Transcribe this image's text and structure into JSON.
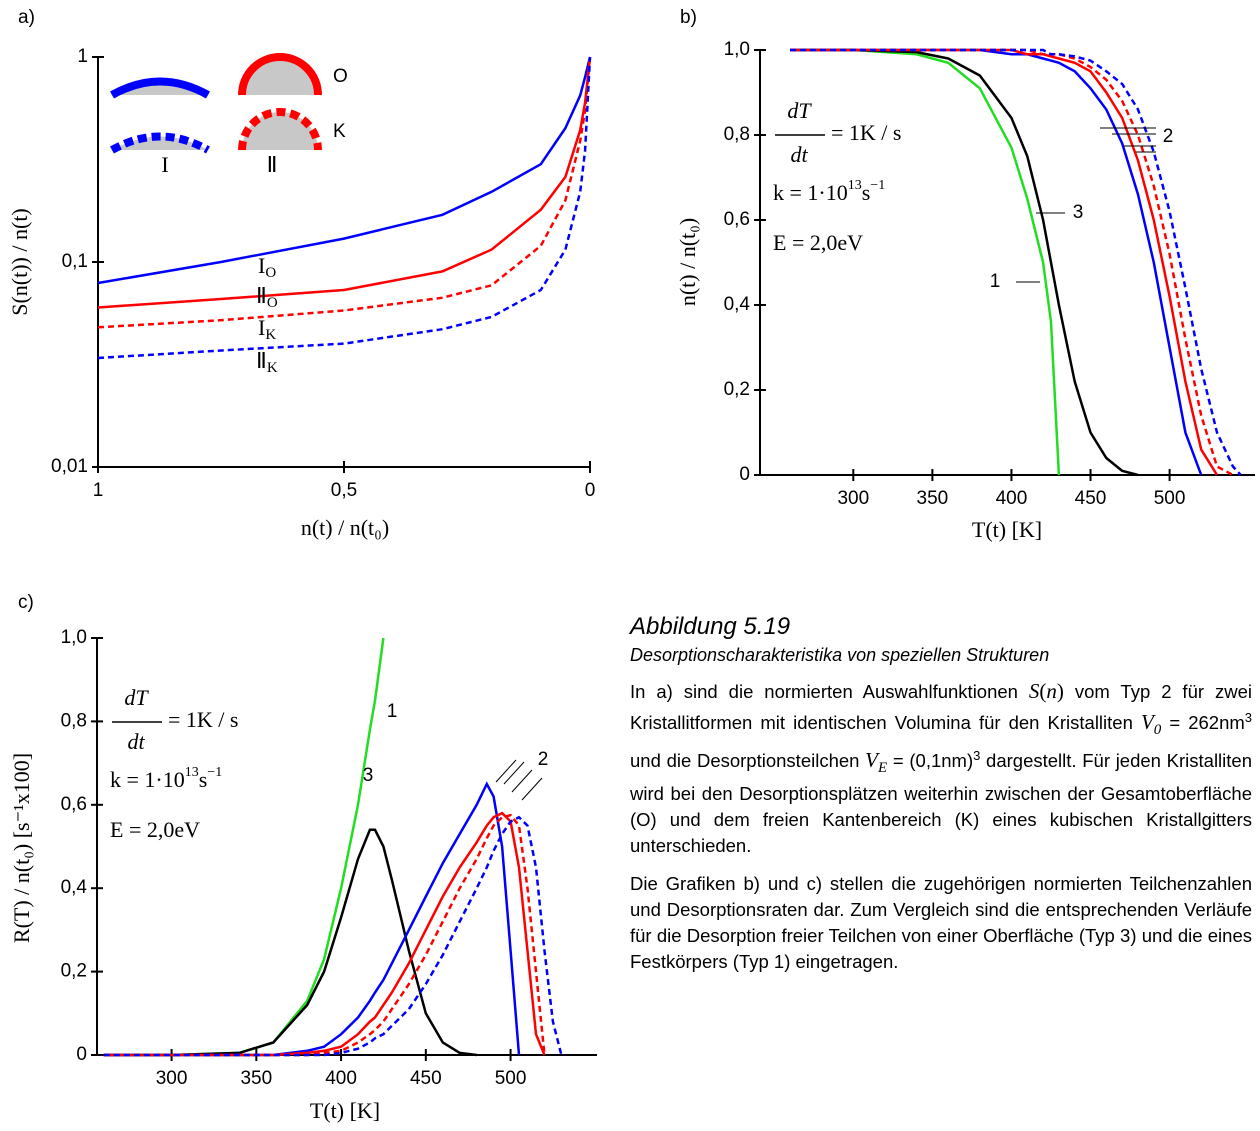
{
  "chart_data": [
    {
      "type": "line",
      "label": "a)",
      "y_label": "S(n(t)) / n(t)",
      "x_label": "n(t) / n(t₀)",
      "log": true,
      "xlim": [
        1,
        0
      ],
      "ylim": [
        0.01,
        1
      ],
      "xticks": [
        1,
        {
          "value": 0.5,
          "label": "0,5"
        },
        0
      ],
      "yticks": [
        {
          "value": 0.01,
          "label": "0,01"
        },
        {
          "value": 0.1,
          "label": "0,1"
        },
        1
      ],
      "shape_labels": [
        "O",
        "K",
        "I",
        "Ⅱ"
      ],
      "x": [
        1,
        0.75,
        0.5,
        0.3,
        0.2,
        0.1,
        0.05,
        0.02,
        0.01,
        0
      ],
      "series": [
        {
          "name": "I",
          "subscript": "O",
          "color": "#0000ff",
          "dashed": false,
          "values": [
            0.079,
            0.1,
            0.13,
            0.17,
            0.22,
            0.3,
            0.45,
            0.65,
            0.8,
            1
          ]
        },
        {
          "name": "Ⅱ",
          "subscript": "O",
          "color": "#ff0000",
          "dashed": false,
          "values": [
            0.06,
            0.066,
            0.073,
            0.09,
            0.115,
            0.18,
            0.26,
            0.44,
            0.6,
            1
          ]
        },
        {
          "name": "I",
          "subscript": "K",
          "color": "#ff0000",
          "dashed": true,
          "values": [
            0.048,
            0.052,
            0.058,
            0.067,
            0.077,
            0.12,
            0.2,
            0.39,
            0.55,
            1
          ]
        },
        {
          "name": "Ⅱ",
          "subscript": "K",
          "color": "#0000ff",
          "dashed": true,
          "values": [
            0.034,
            0.037,
            0.04,
            0.047,
            0.054,
            0.073,
            0.115,
            0.22,
            0.35,
            1
          ]
        }
      ]
    },
    {
      "type": "line",
      "label": "b)",
      "y_label": "n(t) / n(t₀)",
      "x_label": "T(t) [K]",
      "log": false,
      "xlim": [
        241,
        554
      ],
      "ylim": [
        0,
        1.0
      ],
      "xticks": [
        300,
        350,
        400,
        450,
        500
      ],
      "yticks": [
        0,
        {
          "value": 0.2,
          "label": "0,2"
        },
        {
          "value": 0.4,
          "label": "0,4"
        },
        {
          "value": 0.6,
          "label": "0,6"
        },
        {
          "value": 0.8,
          "label": "0,8"
        },
        {
          "value": 1.0,
          "label": "1,0"
        }
      ],
      "curve_labels": [
        "1",
        "2",
        "3"
      ],
      "formula": [
        "dT",
        "dt",
        "= 1K / s",
        "k = 1·10",
        "13",
        "s",
        "−1",
        "E = 2,0eV"
      ],
      "x": [
        260,
        300,
        340,
        360,
        380,
        400,
        410,
        420,
        425,
        430,
        440,
        450,
        460,
        470,
        480,
        490,
        500,
        510,
        520,
        530,
        540,
        545
      ],
      "series": [
        {
          "color": "#22dd22",
          "dashed": false,
          "values": [
            1,
            1,
            0.99,
            0.97,
            0.91,
            0.77,
            0.65,
            0.5,
            0.36,
            0,
            null,
            null,
            null,
            null,
            null,
            null,
            null,
            null,
            null,
            null,
            null,
            null
          ]
        },
        {
          "color": "#000000",
          "dashed": false,
          "values": [
            1,
            1,
            0.995,
            0.98,
            0.94,
            0.84,
            0.75,
            0.6,
            0.5,
            0.4,
            0.22,
            0.1,
            0.04,
            0.01,
            0,
            null,
            null,
            null,
            null,
            null,
            null,
            null
          ]
        },
        {
          "color": "#0000ff",
          "dashed": false,
          "values": [
            1,
            1,
            1,
            1,
            1,
            0.99,
            0.99,
            0.98,
            0.975,
            0.97,
            0.95,
            0.91,
            0.86,
            0.78,
            0.66,
            0.5,
            0.3,
            0.1,
            0,
            null,
            null,
            null
          ]
        },
        {
          "color": "#ff0000",
          "dashed": false,
          "values": [
            1,
            1,
            1,
            1,
            1,
            1,
            0.99,
            0.99,
            0.985,
            0.98,
            0.97,
            0.95,
            0.9,
            0.84,
            0.74,
            0.6,
            0.42,
            0.22,
            0.06,
            0,
            null,
            null
          ]
        },
        {
          "color": "#ff0000",
          "dashed": true,
          "values": [
            1,
            1,
            1,
            1,
            1,
            1,
            1,
            0.99,
            0.99,
            0.99,
            0.98,
            0.96,
            0.93,
            0.88,
            0.8,
            0.68,
            0.52,
            0.32,
            0.14,
            0.02,
            0,
            null
          ]
        },
        {
          "color": "#0000ff",
          "dashed": true,
          "values": [
            1,
            1,
            1,
            1,
            1,
            1,
            1,
            1,
            0.99,
            0.99,
            0.985,
            0.975,
            0.95,
            0.92,
            0.86,
            0.76,
            0.62,
            0.44,
            0.25,
            0.1,
            0.02,
            0
          ]
        }
      ]
    },
    {
      "type": "line",
      "label": "c)",
      "y_label": "R(T) / n(t₀) [s⁻¹x100]",
      "x_label": "T(t) [K]",
      "log": false,
      "xlim": [
        256,
        551
      ],
      "ylim": [
        0,
        1.0
      ],
      "xticks": [
        300,
        350,
        400,
        450,
        500
      ],
      "yticks": [
        0,
        {
          "value": 0.2,
          "label": "0,2"
        },
        {
          "value": 0.4,
          "label": "0,4"
        },
        {
          "value": 0.6,
          "label": "0,6"
        },
        {
          "value": 0.8,
          "label": "0,8"
        },
        {
          "value": 1.0,
          "label": "1,0"
        }
      ],
      "curve_labels": [
        "1",
        "2",
        "3"
      ],
      "formula": [
        "dT",
        "dt",
        "= 1K / s",
        "k = 1·10",
        "13",
        "s",
        "−1",
        "E = 2,0eV"
      ],
      "x": [
        260,
        300,
        340,
        360,
        380,
        390,
        400,
        410,
        417,
        420,
        425,
        430,
        440,
        450,
        460,
        470,
        480,
        486,
        490,
        495,
        500,
        505,
        510,
        515,
        520,
        525,
        530
      ],
      "series": [
        {
          "color": "#22dd22",
          "dashed": false,
          "values": [
            0,
            0,
            0.005,
            0.03,
            0.13,
            0.23,
            0.4,
            0.6,
            0.78,
            0.85,
            1.0,
            null,
            null,
            null,
            null,
            null,
            null,
            null,
            null,
            null,
            null,
            null,
            null,
            null,
            null,
            null,
            null
          ]
        },
        {
          "color": "#000000",
          "dashed": false,
          "values": [
            0,
            0,
            0.005,
            0.03,
            0.12,
            0.2,
            0.33,
            0.47,
            0.54,
            0.54,
            0.5,
            0.42,
            0.25,
            0.1,
            0.03,
            0.005,
            0,
            null,
            null,
            null,
            null,
            null,
            null,
            null,
            null,
            null,
            null
          ]
        },
        {
          "color": "#0000ff",
          "dashed": false,
          "values": [
            0,
            0,
            0,
            0,
            0.01,
            0.02,
            0.05,
            0.09,
            0.13,
            0.15,
            0.18,
            0.22,
            0.3,
            0.38,
            0.46,
            0.53,
            0.6,
            0.65,
            0.62,
            0.5,
            0.25,
            0,
            null,
            null,
            null,
            null,
            null
          ]
        },
        {
          "color": "#ff0000",
          "dashed": false,
          "values": [
            0,
            0,
            0,
            0,
            0.005,
            0.01,
            0.02,
            0.05,
            0.08,
            0.09,
            0.12,
            0.15,
            0.22,
            0.3,
            0.38,
            0.45,
            0.51,
            0.55,
            0.57,
            0.58,
            0.56,
            0.45,
            0.25,
            0.05,
            0,
            null,
            null
          ]
        },
        {
          "color": "#ff0000",
          "dashed": true,
          "values": [
            0,
            0,
            0,
            0,
            0,
            0.005,
            0.01,
            0.03,
            0.05,
            0.06,
            0.08,
            0.11,
            0.17,
            0.24,
            0.32,
            0.4,
            0.47,
            0.52,
            0.55,
            0.57,
            0.575,
            0.55,
            0.4,
            0.2,
            0,
            null,
            null
          ]
        },
        {
          "color": "#0000ff",
          "dashed": true,
          "values": [
            0,
            0,
            0,
            0,
            0,
            0,
            0.005,
            0.015,
            0.03,
            0.04,
            0.05,
            0.07,
            0.11,
            0.17,
            0.24,
            0.32,
            0.4,
            0.45,
            0.49,
            0.53,
            0.56,
            0.57,
            0.55,
            0.45,
            0.25,
            0.08,
            0
          ]
        }
      ]
    }
  ],
  "caption": {
    "title": "Abbildung 5.19",
    "subtitle": "Desorptionscharakteristika von speziellen Strukturen",
    "p1": [
      "In a) sind die normierten Auswahlfunktionen ",
      "S",
      "(",
      "n",
      ")",
      " vom Typ 2 für zwei Kristallitformen mit identischen Volumina für den Kristalliten ",
      "V",
      "0",
      " = 262nm",
      "3",
      " und die Desorptionsteilchen ",
      "V",
      "E",
      " = (0,1nm)",
      "3",
      " dargestellt. Für jeden Kristalliten wird bei den Desorptionsplätzen weiterhin zwischen der Gesamtoberfläche (O) und dem freien Kantenbereich (K) eines kubischen Kristallgitters unterschieden."
    ],
    "p2": "Die Grafiken b) und c) stellen die zugehörigen normierten Teilchenzahlen und Desorptionsraten dar. Zum Vergleich sind die entsprechenden Verläufe für die Desorption freier Teilchen von einer Oberfläche (Typ 3) und die eines Festkörpers (Typ 1) eingetragen."
  }
}
